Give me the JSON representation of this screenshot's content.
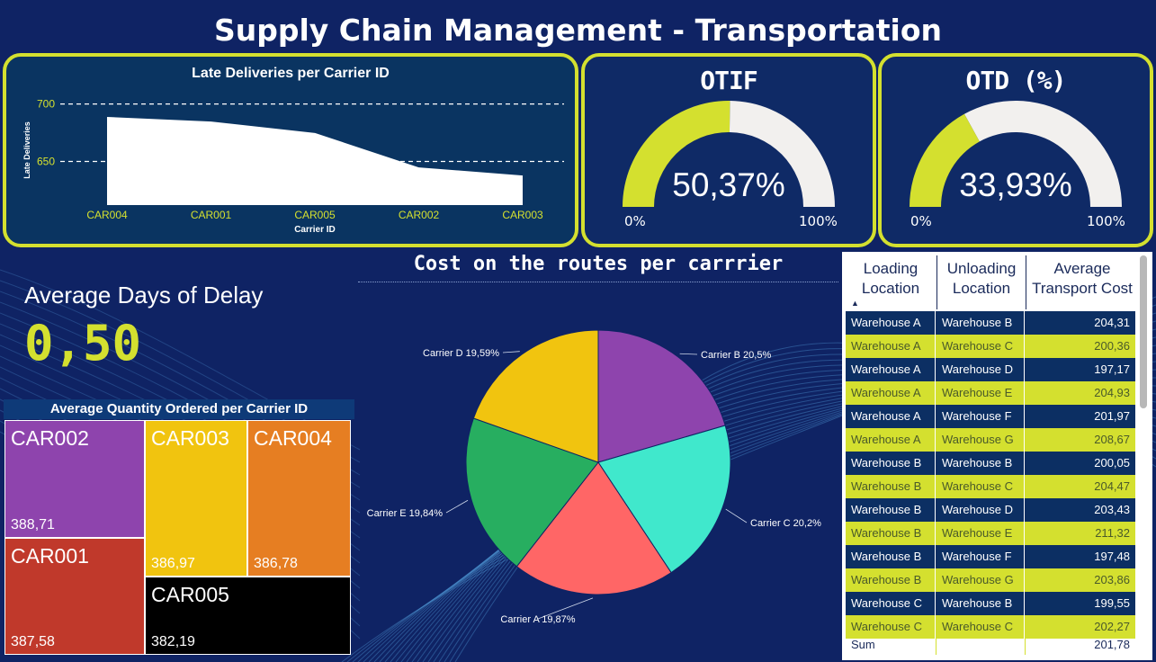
{
  "title": "Supply Chain Management - Transportation",
  "colors": {
    "background": "#0f2364",
    "accent": "#d4e02f",
    "gauge_track": "#f2f0ee"
  },
  "late_deliveries": {
    "title": "Late Deliveries per Carrier ID",
    "xlabel": "Carrier ID",
    "ylabel": "Late Deliveries"
  },
  "otif": {
    "title": "OTIF",
    "value_label": "50,37%",
    "value": 0.5037,
    "min": "0%",
    "max": "100%"
  },
  "otd": {
    "title": "OTD (%)",
    "value_label": "33,93%",
    "value": 0.3393,
    "min": "0%",
    "max": "100%"
  },
  "delay": {
    "label": "Average Days of Delay",
    "value": "0,50"
  },
  "pie_title": "Cost on the routes per carrrier",
  "treemap": {
    "title": "Average Quantity Ordered per Carrier ID",
    "tiles": [
      {
        "name": "CAR002",
        "value": "388,71",
        "color": "#8e44ad"
      },
      {
        "name": "CAR003",
        "value": "386,97",
        "color": "#f1c40f"
      },
      {
        "name": "CAR004",
        "value": "386,78",
        "color": "#e67e22"
      },
      {
        "name": "CAR001",
        "value": "387,58",
        "color": "#c0392b"
      },
      {
        "name": "CAR005",
        "value": "382,19",
        "color": "#000000"
      }
    ]
  },
  "table": {
    "headers": [
      "Loading Location",
      "Unloading Location",
      "Average Transport Cost"
    ],
    "rows": [
      [
        "Warehouse A",
        "Warehouse B",
        "204,31"
      ],
      [
        "Warehouse A",
        "Warehouse C",
        "200,36"
      ],
      [
        "Warehouse A",
        "Warehouse D",
        "197,17"
      ],
      [
        "Warehouse A",
        "Warehouse E",
        "204,93"
      ],
      [
        "Warehouse A",
        "Warehouse F",
        "201,97"
      ],
      [
        "Warehouse A",
        "Warehouse G",
        "208,67"
      ],
      [
        "Warehouse B",
        "Warehouse B",
        "200,05"
      ],
      [
        "Warehouse B",
        "Warehouse C",
        "204,47"
      ],
      [
        "Warehouse B",
        "Warehouse D",
        "203,43"
      ],
      [
        "Warehouse B",
        "Warehouse E",
        "211,32"
      ],
      [
        "Warehouse B",
        "Warehouse F",
        "197,48"
      ],
      [
        "Warehouse B",
        "Warehouse G",
        "203,86"
      ],
      [
        "Warehouse C",
        "Warehouse B",
        "199,55"
      ],
      [
        "Warehouse C",
        "Warehouse C",
        "202,27"
      ]
    ],
    "sum_label": "Sum",
    "sum_value": "201,78"
  },
  "chart_data": [
    {
      "type": "area",
      "title": "Late Deliveries per Carrier ID",
      "xlabel": "Carrier ID",
      "ylabel": "Late Deliveries",
      "categories": [
        "CAR004",
        "CAR001",
        "CAR005",
        "CAR002",
        "CAR003"
      ],
      "values": [
        688,
        684,
        674,
        644,
        637
      ],
      "yticks": [
        650,
        700
      ],
      "ylim": [
        620,
        710
      ],
      "grid": true
    },
    {
      "type": "pie",
      "title": "Cost on the routes per carrrier",
      "labels": [
        "Carrier B",
        "Carrier C",
        "Carrier A",
        "Carrier E",
        "Carrier D"
      ],
      "values": [
        20.5,
        20.2,
        19.87,
        19.84,
        19.59
      ],
      "data_labels": [
        "Carrier B 20,5%",
        "Carrier C 20,2%",
        "Carrier A 19,87%",
        "Carrier E 19,84%",
        "Carrier D 19,59%"
      ],
      "colors": [
        "#8e44ad",
        "#40e8cc",
        "#ff6666",
        "#27ae60",
        "#f1c40f"
      ]
    }
  ]
}
